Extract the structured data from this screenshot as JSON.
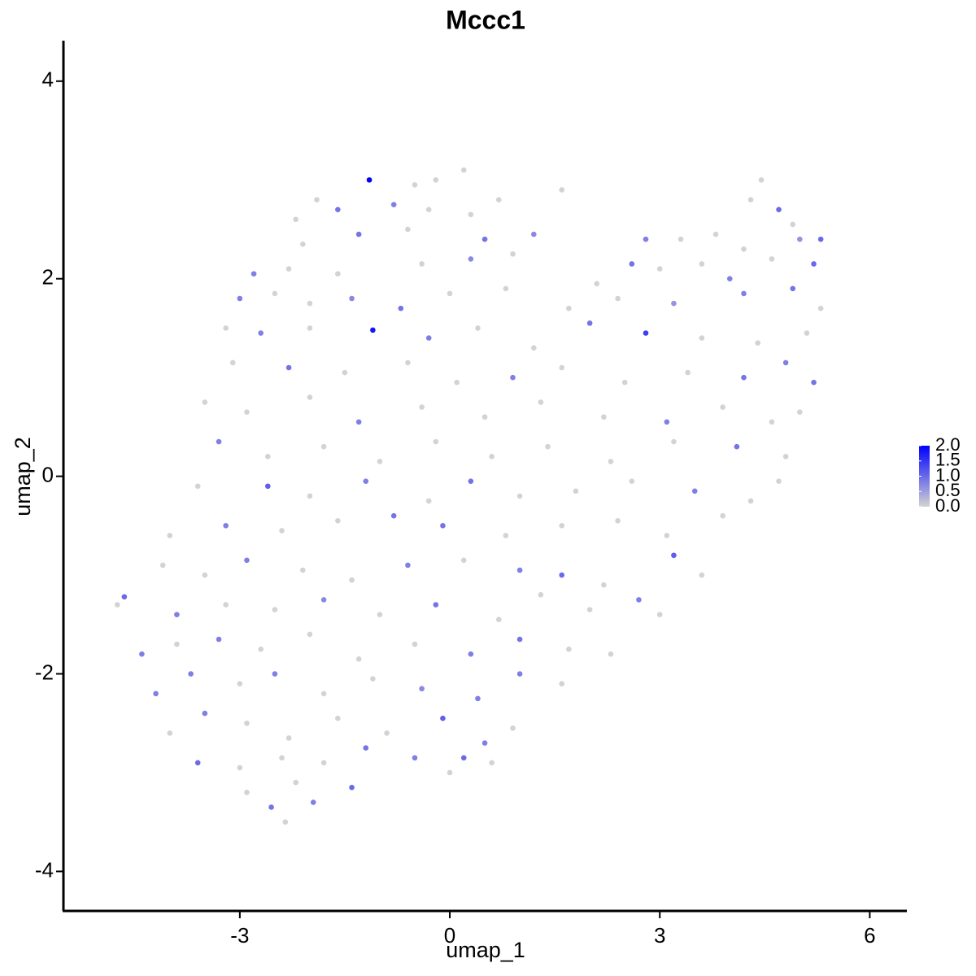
{
  "chart_data": {
    "type": "scatter",
    "title": "Mccc1",
    "x_label": "umap_1",
    "y_label": "umap_2",
    "xlim": [
      -5.52,
      6.53
    ],
    "ylim": [
      -4.4,
      4.41
    ],
    "xticks": [
      -3,
      0,
      3,
      6
    ],
    "yticks": [
      -4,
      -2,
      0,
      2,
      4
    ],
    "color_low": "#d3d3d3",
    "color_high": "#0000ff",
    "clim": [
      0,
      2
    ],
    "legend_ticks": [
      {
        "value": 0,
        "label": "0.0"
      },
      {
        "value": 0.5,
        "label": "0.5"
      },
      {
        "value": 1,
        "label": "1.0"
      },
      {
        "value": 1.5,
        "label": "1.5"
      },
      {
        "value": 2,
        "label": "2.0"
      }
    ],
    "x": [
      -1.15,
      -0.5,
      0.2,
      -0.2,
      -1.9,
      0.7,
      4.45,
      -2.2,
      -1.6,
      -0.8,
      -0.3,
      0.3,
      4.3,
      4.7,
      4.9,
      1.6,
      -2.1,
      -1.3,
      -0.6,
      0.5,
      1.2,
      3.3,
      3.8,
      4.2,
      5.0,
      5.3,
      2.8,
      -2.8,
      -2.3,
      -1.6,
      -0.4,
      0.3,
      0.9,
      2.6,
      3.0,
      3.6,
      4.6,
      5.2,
      2.1,
      4.0,
      -3.0,
      -2.5,
      -2.0,
      -1.4,
      -0.7,
      0,
      0.8,
      1.7,
      2.4,
      3.2,
      4.2,
      4.9,
      5.3,
      -3.2,
      -2.7,
      -2.0,
      -1.1,
      -0.3,
      0.4,
      1.2,
      2.0,
      2.8,
      3.6,
      4.4,
      5.1,
      -3.1,
      -2.3,
      -1.5,
      -0.6,
      0.1,
      0.9,
      1.6,
      2.5,
      3.4,
      4.2,
      4.8,
      5.2,
      -3.5,
      -2.9,
      -2.0,
      -1.3,
      -0.4,
      0.5,
      1.3,
      2.2,
      3.1,
      3.9,
      4.6,
      5.0,
      -3.3,
      -2.6,
      -1.8,
      -1.0,
      -0.2,
      0.6,
      1.4,
      2.3,
      3.2,
      4.1,
      4.8,
      -3.6,
      -2.6,
      -2.0,
      -1.2,
      -0.3,
      0.3,
      1.0,
      1.8,
      2.6,
      3.5,
      4.3,
      4.7,
      -4.0,
      -3.2,
      -2.4,
      -1.6,
      -0.8,
      -0.1,
      0.8,
      1.6,
      2.4,
      3.1,
      3.9,
      -4.1,
      -3.5,
      -2.9,
      -2.1,
      -1.4,
      -0.6,
      0.2,
      1.0,
      1.6,
      2.2,
      3.2,
      3.6,
      -4.75,
      -4.65,
      -3.9,
      -3.2,
      -2.5,
      -1.8,
      -1.0,
      -0.2,
      0.7,
      1.3,
      2.0,
      2.7,
      3.0,
      -4.4,
      -3.9,
      -3.3,
      -2.7,
      -2.0,
      -1.3,
      -0.5,
      0.3,
      1.0,
      1.7,
      2.3,
      -4.2,
      -3.7,
      -3.0,
      -2.5,
      -1.8,
      -1.1,
      -0.4,
      0.4,
      1.0,
      1.6,
      -4.0,
      -3.5,
      -2.9,
      -2.3,
      -1.6,
      -0.9,
      -0.1,
      0.5,
      0.9,
      -3.6,
      -3.0,
      -2.4,
      -1.8,
      -1.2,
      -0.5,
      0.2,
      0.6,
      -2.9,
      -2.2,
      -1.4,
      0.0,
      -2.55,
      -2.35,
      -1.95
    ],
    "y": [
      3.0,
      2.95,
      3.1,
      3.0,
      2.8,
      2.8,
      3.0,
      2.6,
      2.7,
      2.75,
      2.7,
      2.65,
      2.8,
      2.7,
      2.55,
      2.9,
      2.35,
      2.45,
      2.5,
      2.4,
      2.45,
      2.4,
      2.45,
      2.3,
      2.4,
      2.4,
      2.4,
      2.05,
      2.1,
      2.05,
      2.15,
      2.2,
      2.25,
      2.15,
      2.1,
      2.15,
      2.2,
      2.15,
      1.95,
      2.0,
      1.8,
      1.85,
      1.75,
      1.8,
      1.7,
      1.85,
      1.9,
      1.7,
      1.8,
      1.75,
      1.85,
      1.9,
      1.7,
      1.5,
      1.45,
      1.5,
      1.48,
      1.4,
      1.5,
      1.3,
      1.55,
      1.45,
      1.4,
      1.35,
      1.45,
      1.15,
      1.1,
      1.05,
      1.15,
      0.95,
      1.0,
      1.1,
      0.95,
      1.05,
      1.0,
      1.15,
      0.95,
      0.75,
      0.65,
      0.8,
      0.55,
      0.7,
      0.6,
      0.75,
      0.6,
      0.55,
      0.7,
      0.55,
      0.65,
      0.35,
      0.2,
      0.3,
      0.15,
      0.35,
      0.2,
      0.3,
      0.15,
      0.35,
      0.3,
      0.2,
      -0.1,
      -0.1,
      -0.2,
      -0.05,
      -0.25,
      -0.05,
      -0.2,
      -0.15,
      -0.05,
      -0.15,
      -0.25,
      -0.05,
      -0.6,
      -0.5,
      -0.55,
      -0.45,
      -0.4,
      -0.5,
      -0.6,
      -0.5,
      -0.45,
      -0.6,
      -0.4,
      -0.9,
      -1.0,
      -0.85,
      -0.95,
      -1.05,
      -0.9,
      -0.85,
      -0.95,
      -1.0,
      -1.1,
      -0.8,
      -1.0,
      -1.3,
      -1.22,
      -1.4,
      -1.3,
      -1.35,
      -1.25,
      -1.4,
      -1.3,
      -1.45,
      -1.2,
      -1.35,
      -1.25,
      -1.4,
      -1.8,
      -1.7,
      -1.65,
      -1.75,
      -1.6,
      -1.85,
      -1.7,
      -1.8,
      -1.65,
      -1.75,
      -1.8,
      -2.2,
      -2.0,
      -2.1,
      -2.0,
      -2.2,
      -2.05,
      -2.15,
      -2.25,
      -2.0,
      -2.1,
      -2.6,
      -2.4,
      -2.5,
      -2.65,
      -2.45,
      -2.6,
      -2.45,
      -2.7,
      -2.55,
      -2.9,
      -2.95,
      -2.85,
      -2.9,
      -2.75,
      -2.85,
      -2.85,
      -2.9,
      -3.2,
      -3.1,
      -3.15,
      -3.0,
      -3.35,
      -3.5,
      -3.3
    ],
    "values": [
      2.0,
      0,
      0,
      0,
      0,
      0,
      0,
      0,
      0.9,
      0.8,
      0,
      0,
      0,
      1.0,
      0,
      0,
      0,
      0.9,
      0,
      0.9,
      0.7,
      0,
      0,
      0,
      0.6,
      1.0,
      0.8,
      0.8,
      0,
      0,
      0,
      0.7,
      0,
      0.9,
      0,
      0,
      0,
      1.0,
      0,
      0.8,
      0.8,
      0,
      0,
      0.7,
      0.9,
      0,
      0,
      0,
      0,
      0.6,
      0.8,
      0.9,
      0,
      0,
      0.8,
      0,
      1.8,
      0.8,
      0,
      0,
      0.9,
      1.4,
      0,
      0,
      0,
      0,
      0.9,
      0,
      0,
      0,
      0.8,
      0,
      0,
      0,
      0.9,
      0.8,
      0.9,
      0,
      0,
      0,
      0.8,
      0,
      0,
      0,
      0,
      0.8,
      0,
      0,
      0,
      0.8,
      0,
      0,
      0,
      0,
      0,
      0,
      0,
      0,
      0.9,
      0,
      0,
      1.1,
      0,
      0.8,
      0,
      0.9,
      0,
      0,
      0,
      0.8,
      0,
      0,
      0,
      0.8,
      0,
      0,
      0.9,
      0.9,
      0,
      0,
      0,
      0,
      0,
      0,
      0,
      0.8,
      0,
      0,
      0.8,
      0,
      0.8,
      1.0,
      0,
      1.1,
      0,
      0,
      1.0,
      0.8,
      0,
      0,
      0.7,
      0,
      0.9,
      0,
      0,
      0,
      0.8,
      0,
      0.8,
      0,
      0.8,
      0,
      0,
      0,
      0,
      0.8,
      0.9,
      0,
      0,
      0.8,
      0.8,
      0,
      0.8,
      0,
      0,
      0.7,
      0.8,
      0.8,
      0,
      0,
      0.8,
      0,
      0,
      0,
      0,
      1.1,
      0.8,
      0,
      1.0,
      0,
      0,
      0,
      0.9,
      0.8,
      1.0,
      0,
      0,
      0,
      1.0,
      0,
      0.9,
      0,
      0.8
    ]
  }
}
